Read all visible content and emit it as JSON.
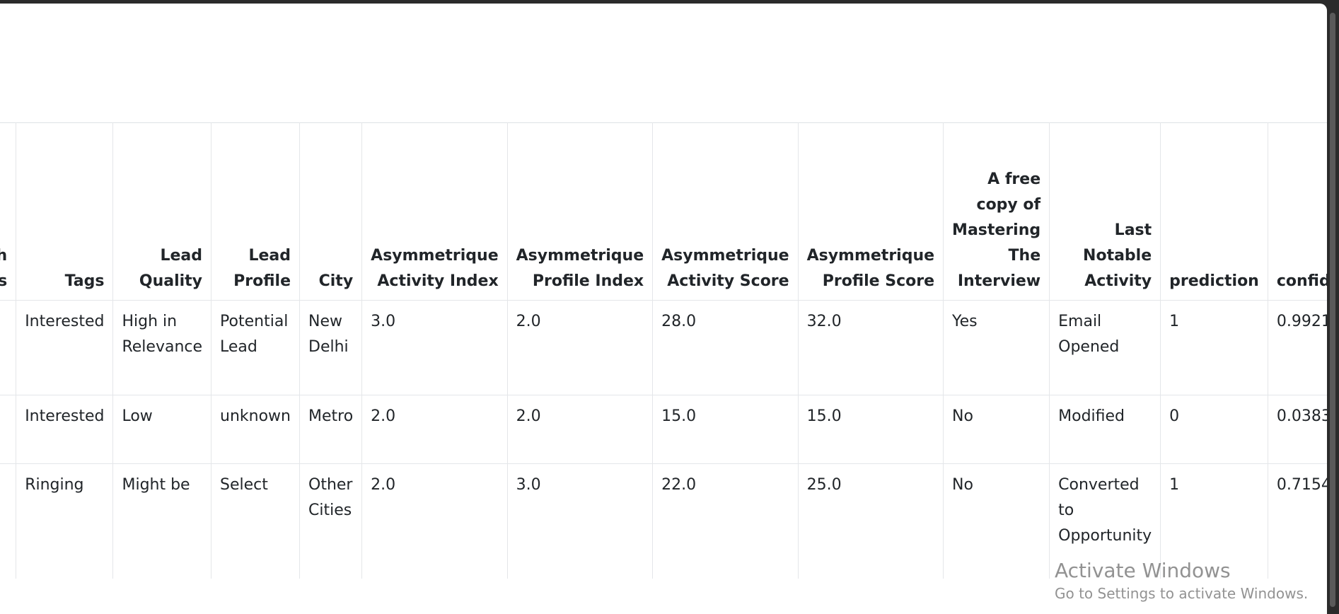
{
  "table": {
    "columns": [
      "ough\ntions",
      "Tags",
      "Lead Quality",
      "Lead Profile",
      "City",
      "Asymmetrique Activity Index",
      "Asymmetrique Profile Index",
      "Asymmetrique Activity Score",
      "Asymmetrique Profile Score",
      "A free copy of Mastering The Interview",
      "Last Notable Activity",
      "prediction",
      "confidence"
    ],
    "rows": [
      [
        "",
        "Interested",
        "High in Relevance",
        "Potential Lead",
        "New Delhi",
        "3.0",
        "2.0",
        "28.0",
        "32.0",
        "Yes",
        "Email Opened",
        "1",
        "0.9921"
      ],
      [
        "",
        "Interested",
        "Low",
        "unknown",
        "Metro",
        "2.0",
        "2.0",
        "15.0",
        "15.0",
        "No",
        "Modified",
        "0",
        "0.0383"
      ],
      [
        "",
        "Ringing",
        "Might be",
        "Select",
        "Other Cities",
        "2.0",
        "3.0",
        "22.0",
        "25.0",
        "No",
        "Converted to Opportunity",
        "1",
        "0.7154"
      ]
    ]
  },
  "watermark": {
    "title": "Activate Windows",
    "subtitle": "Go to Settings to activate Windows."
  }
}
